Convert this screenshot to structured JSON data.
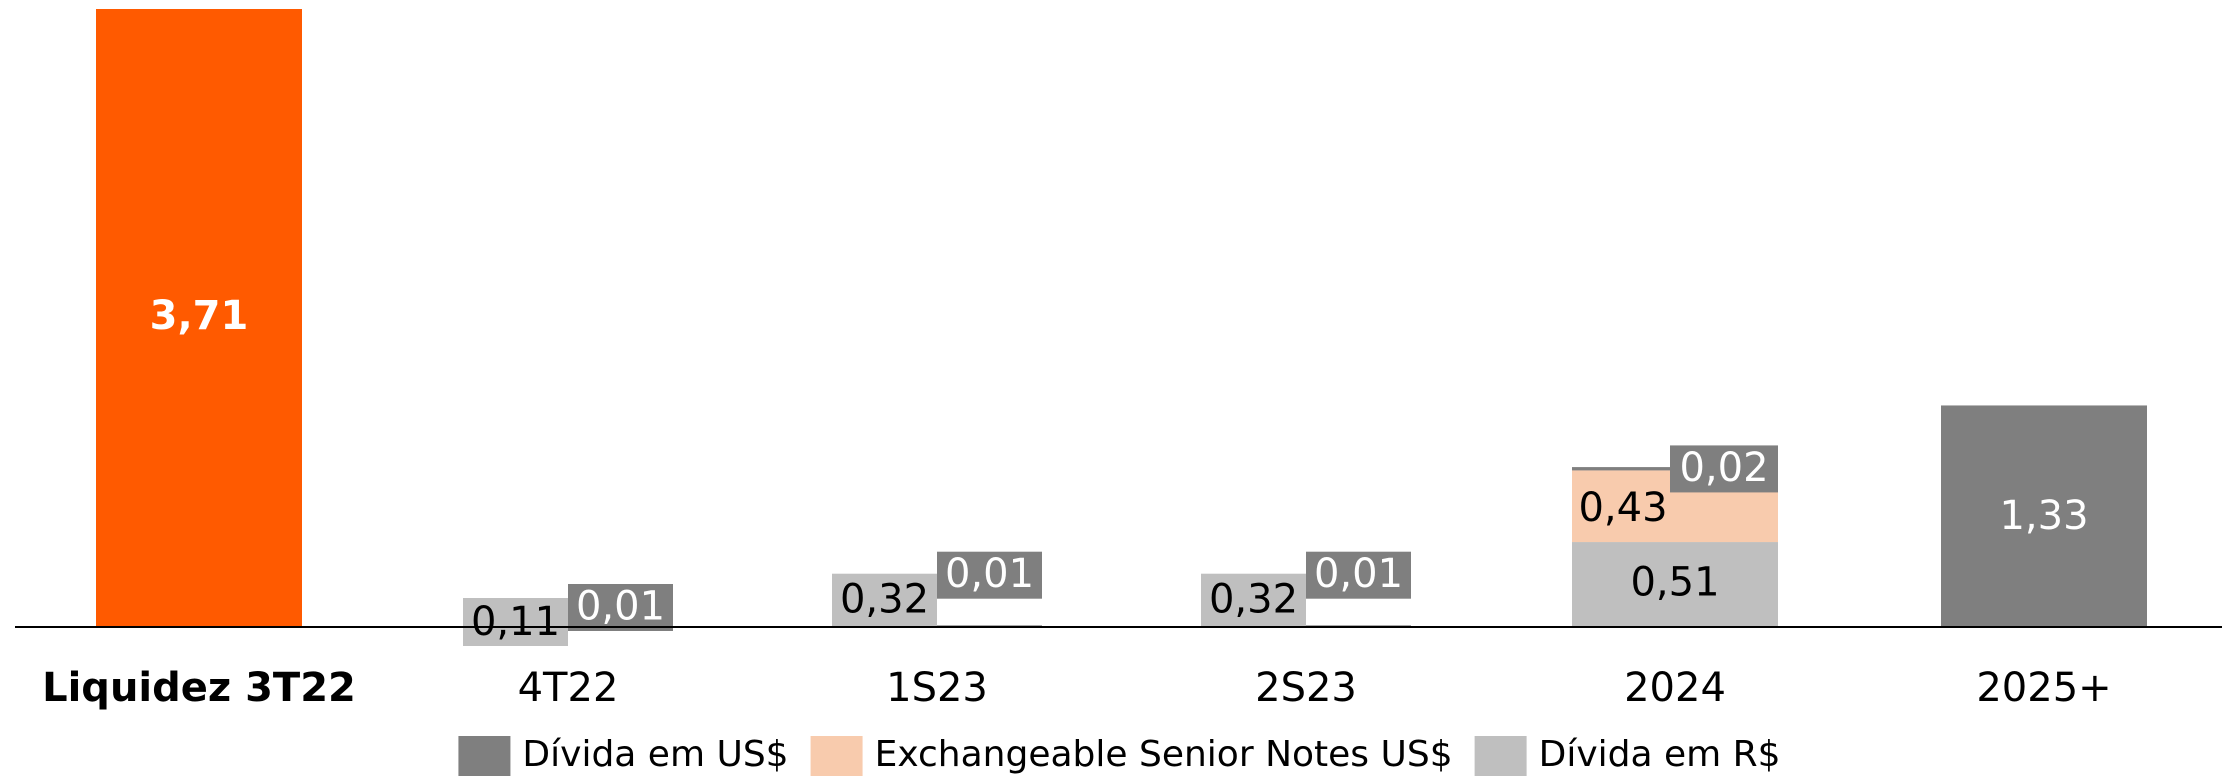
{
  "chart_data": {
    "type": "bar",
    "stacked": true,
    "categories": [
      "Liquidez 3T22",
      "4T22",
      "1S23",
      "2S23",
      "2024",
      "2025+"
    ],
    "bold_categories": [
      "Liquidez 3T22"
    ],
    "ylim": [
      0,
      3.71
    ],
    "grid": false,
    "legend_position": "bottom",
    "series": [
      {
        "name": "Dívida em US$",
        "color": "#7f7f7f",
        "values": [
          null,
          0.01,
          0.01,
          0.01,
          0.02,
          1.33
        ],
        "labels": [
          "",
          "0,01",
          "0,01",
          "0,01",
          "0,02",
          "1,33"
        ]
      },
      {
        "name": "Exchangeable Senior Notes US$",
        "color": "#f8cbad",
        "values": [
          null,
          null,
          null,
          null,
          0.43,
          null
        ],
        "labels": [
          "",
          "",
          "",
          "",
          "0,43",
          ""
        ]
      },
      {
        "name": "Dívida em R$",
        "color": "#bfbfbf",
        "values": [
          null,
          0.11,
          0.32,
          0.32,
          0.51,
          null
        ],
        "labels": [
          "",
          "0,11",
          "0,32",
          "0,32",
          "0,51",
          ""
        ]
      },
      {
        "name": "",
        "color": "#ff5a00",
        "values": [
          3.71,
          null,
          null,
          null,
          null,
          null
        ],
        "labels": [
          "3,71",
          "",
          "",
          "",
          "",
          ""
        ]
      }
    ],
    "legend": [
      {
        "name": "Dívida em US$",
        "color": "#7f7f7f"
      },
      {
        "name": "Exchangeable Senior Notes US$",
        "color": "#f8cbad"
      },
      {
        "name": "Dívida em R$",
        "color": "#bfbfbf"
      }
    ]
  }
}
